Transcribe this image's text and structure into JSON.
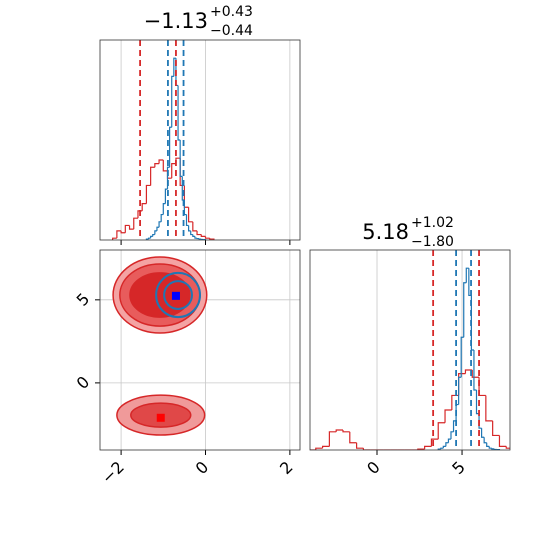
{
  "chart_data": [
    {
      "type": "histogram",
      "title": "−1.13",
      "title_sup": "+0.43",
      "title_sub": "−0.44",
      "xlim": [
        -2.5,
        2.24
      ],
      "xticks": [
        -2,
        0,
        2
      ],
      "ylim": [
        0,
        1.1
      ],
      "grid": true,
      "series": [
        {
          "color": "#d62728",
          "bins": [
            -2.2,
            -2.1,
            -2.0,
            -1.9,
            -1.8,
            -1.7,
            -1.6,
            -1.5,
            -1.4,
            -1.3,
            -1.2,
            -1.1,
            -1.0,
            -0.9,
            -0.8,
            -0.7,
            -0.6,
            -0.5,
            -0.4,
            -0.3,
            -0.2,
            -0.1,
            0.0,
            0.1,
            0.2
          ],
          "values": [
            0.01,
            0.05,
            0.04,
            0.08,
            0.06,
            0.12,
            0.16,
            0.2,
            0.3,
            0.4,
            0.42,
            0.44,
            0.38,
            0.34,
            0.42,
            0.45,
            0.3,
            0.18,
            0.1,
            0.05,
            0.03,
            0.02,
            0.01,
            0.005
          ]
        },
        {
          "color": "#1f77b4",
          "bins": [
            -1.4,
            -1.35,
            -1.3,
            -1.25,
            -1.2,
            -1.15,
            -1.1,
            -1.05,
            -1.0,
            -0.95,
            -0.9,
            -0.85,
            -0.8,
            -0.75,
            -0.7,
            -0.65,
            -0.6,
            -0.55,
            -0.5,
            -0.45,
            -0.4,
            -0.35,
            -0.3,
            -0.25,
            -0.2,
            -0.15,
            -0.1,
            -0.05,
            0.0
          ],
          "values": [
            0.005,
            0.01,
            0.02,
            0.03,
            0.05,
            0.07,
            0.1,
            0.14,
            0.2,
            0.28,
            0.4,
            0.62,
            0.9,
            1.0,
            0.85,
            0.55,
            0.35,
            0.22,
            0.14,
            0.08,
            0.05,
            0.03,
            0.02,
            0.01,
            0.008,
            0.005,
            0.003,
            0.002
          ]
        }
      ],
      "quantile_lines": [
        {
          "color": "#d62728",
          "values": [
            -1.55,
            -0.7
          ]
        },
        {
          "color": "#1f77b4",
          "values": [
            -0.89,
            -0.52
          ]
        }
      ]
    },
    {
      "type": "contour",
      "xlim": [
        -2.5,
        2.24
      ],
      "xticks": [
        {
          "value": -2,
          "label": "−2"
        },
        0,
        2
      ],
      "ylim": [
        -4.04,
        8.0
      ],
      "yticks": [
        0,
        5
      ],
      "grid": true,
      "series": [
        {
          "color": "#d62728",
          "ellipses": [
            {
              "cx": -1.08,
              "cy": 5.29,
              "rx": 1.11,
              "ry": 2.29,
              "fill": "#f4a3a3"
            },
            {
              "cx": -1.08,
              "cy": 5.29,
              "rx": 0.95,
              "ry": 1.87,
              "fill": "#e85c5c"
            },
            {
              "cx": -1.08,
              "cy": 5.29,
              "rx": 0.71,
              "ry": 1.33,
              "fill": "#d62728"
            },
            {
              "cx": -1.06,
              "cy": -1.94,
              "rx": 1.04,
              "ry": 1.2,
              "fill": "#f09a9a"
            },
            {
              "cx": -1.06,
              "cy": -1.94,
              "rx": 0.71,
              "ry": 0.72,
              "fill": "#e04848"
            }
          ]
        },
        {
          "color": "#1f77b4",
          "ellipses": [
            {
              "cx": -0.65,
              "cy": 5.29,
              "rx": 0.52,
              "ry": 1.33,
              "fill": "none"
            },
            {
              "cx": -0.65,
              "cy": 5.29,
              "rx": 0.33,
              "ry": 0.84,
              "fill": "none"
            }
          ]
        }
      ],
      "markers": [
        {
          "color": "#ff0000",
          "x": -1.06,
          "y": -2.1
        },
        {
          "color": "#0000ff",
          "x": -0.7,
          "y": 5.24
        }
      ]
    },
    {
      "type": "histogram",
      "title": "5.18",
      "title_sup": "+1.02",
      "title_sub": "−1.80",
      "xlim": [
        -3.94,
        7.82
      ],
      "xticks": [
        0,
        5
      ],
      "ylim": [
        0,
        1.1
      ],
      "grid": true,
      "series": [
        {
          "color": "#d62728",
          "bins": [
            -4.0,
            -3.6,
            -3.2,
            -2.8,
            -2.4,
            -2.0,
            -1.6,
            -1.2,
            -0.8,
            -0.4,
            0.0,
            0.4,
            0.8,
            1.2,
            1.6,
            2.0,
            2.4,
            2.8,
            3.2,
            3.6,
            4.0,
            4.4,
            4.8,
            5.2,
            5.6,
            6.0,
            6.4,
            6.8,
            7.2,
            7.6,
            8.0
          ],
          "values": [
            0,
            0.01,
            0.02,
            0.1,
            0.11,
            0.1,
            0.04,
            0.01,
            0,
            0,
            0,
            0,
            0,
            0,
            0,
            0,
            0.005,
            0.02,
            0.06,
            0.15,
            0.22,
            0.3,
            0.42,
            0.44,
            0.4,
            0.3,
            0.16,
            0.08,
            0.02,
            0.01
          ]
        },
        {
          "color": "#1f77b4",
          "bins": [
            3.6,
            3.75,
            3.9,
            4.05,
            4.2,
            4.35,
            4.5,
            4.65,
            4.8,
            4.95,
            5.1,
            5.25,
            5.4,
            5.55,
            5.7,
            5.85,
            6.0,
            6.15,
            6.3,
            6.45,
            6.6,
            6.75,
            6.9,
            7.05,
            7.2
          ],
          "values": [
            0.005,
            0.01,
            0.02,
            0.04,
            0.06,
            0.1,
            0.16,
            0.25,
            0.4,
            0.62,
            0.92,
            1.0,
            0.85,
            0.55,
            0.33,
            0.2,
            0.12,
            0.07,
            0.04,
            0.02,
            0.01,
            0.006,
            0.003,
            0.002
          ]
        }
      ],
      "quantile_lines": [
        {
          "color": "#d62728",
          "values": [
            3.3,
            6.0
          ]
        },
        {
          "color": "#1f77b4",
          "values": [
            4.65,
            5.53
          ]
        }
      ]
    }
  ]
}
